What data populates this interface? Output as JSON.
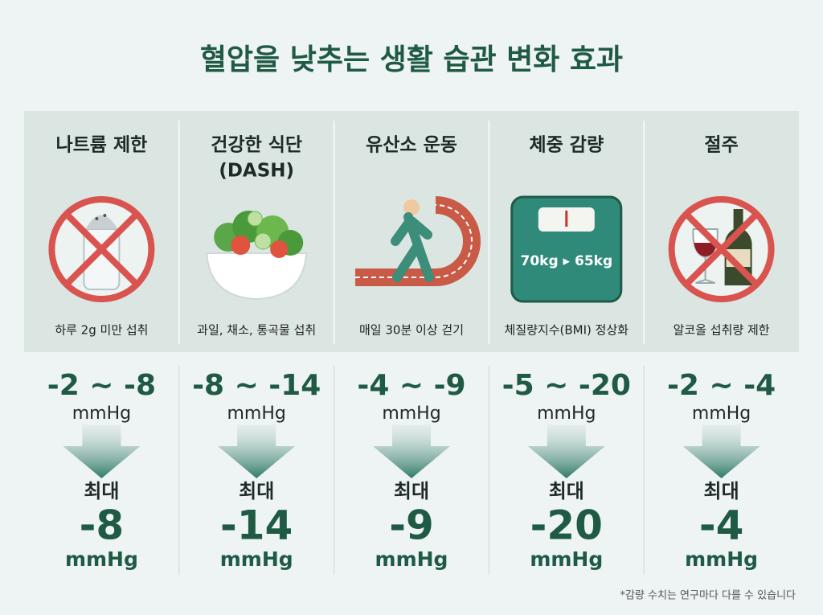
{
  "header": {
    "title": "혈압을 낮추는 생활 습관 변화 효과"
  },
  "columns": [
    {
      "title": [
        "나트륨 제한"
      ],
      "description": "하루 2g 미만 섭취",
      "range": "-2 ~ -8",
      "range_unit": "mmHg",
      "max_label": "최대",
      "max": "-8",
      "max_unit": "mmHg"
    },
    {
      "title": [
        "건강한 식단",
        "(DASH)"
      ],
      "description": "과일, 채소, 통곡물 섭취",
      "range": "-8 ~ -14",
      "range_unit": "mmHg",
      "max_label": "최대",
      "max": "-14",
      "max_unit": "mmHg"
    },
    {
      "title": [
        "유산소 운동"
      ],
      "description": "매일 30분 이상 걷기",
      "range": "-4 ~ -9",
      "range_unit": "mmHg",
      "max_label": "최대",
      "max": "-9",
      "max_unit": "mmHg"
    },
    {
      "title": [
        "체중 감량"
      ],
      "description": "체질량지수(BMI) 정상화",
      "icon_text": "70kg ▸ 65kg",
      "range": "-5 ~ -20",
      "range_unit": "mmHg",
      "max_label": "최대",
      "max": "-20",
      "max_unit": "mmHg"
    },
    {
      "title": [
        "절주"
      ],
      "description": "알코올 섭취량 제한",
      "range": "-2 ~ -4",
      "range_unit": "mmHg",
      "max_label": "최대",
      "max": "-4",
      "max_unit": "mmHg"
    }
  ],
  "footnote": "*감량 수치는 연구마다 다를 수 있습니다"
}
